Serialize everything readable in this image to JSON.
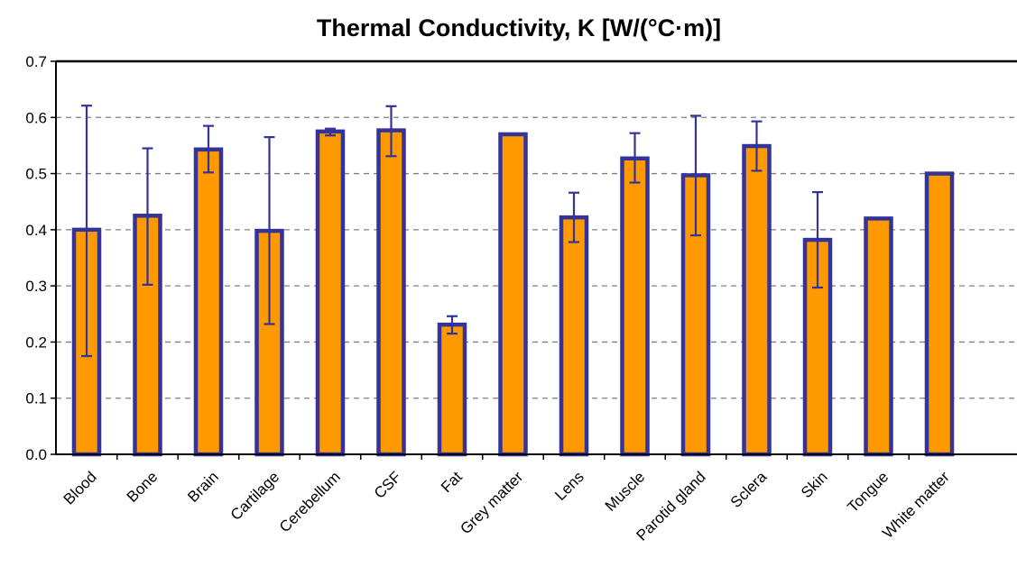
{
  "chart_data": {
    "type": "bar",
    "title": "Thermal Conductivity, K [W/(°C·m)]",
    "xlabel": "",
    "ylabel": "",
    "ylim": [
      0,
      0.7
    ],
    "yticks": [
      "0.0",
      "0.1",
      "0.2",
      "0.3",
      "0.4",
      "0.5",
      "0.6",
      "0.7"
    ],
    "grid": "horizontal dashed",
    "categories": [
      "Blood",
      "Bone",
      "Brain",
      "Cartilage",
      "Cerebellum",
      "CSF",
      "Fat",
      "Grey matter",
      "Lens",
      "Muscle",
      "Parotid gland",
      "Sclera",
      "Skin",
      "Tongue",
      "White matter"
    ],
    "values": [
      0.4,
      0.425,
      0.543,
      0.398,
      0.575,
      0.577,
      0.231,
      0.57,
      0.422,
      0.527,
      0.497,
      0.549,
      0.382,
      0.42,
      0.5
    ],
    "error_low": [
      0.175,
      0.302,
      0.502,
      0.232,
      0.568,
      0.531,
      0.215,
      null,
      0.378,
      0.484,
      0.39,
      0.505,
      0.297,
      null,
      null
    ],
    "error_high": [
      0.621,
      0.545,
      0.585,
      0.565,
      0.58,
      0.62,
      0.246,
      null,
      0.466,
      0.572,
      0.603,
      0.593,
      0.467,
      null,
      null
    ],
    "colors": {
      "bar_fill": "#ff9900",
      "bar_outline": "#333399",
      "error_bar": "#333399",
      "grid": "#808080",
      "axis": "#000000"
    }
  }
}
